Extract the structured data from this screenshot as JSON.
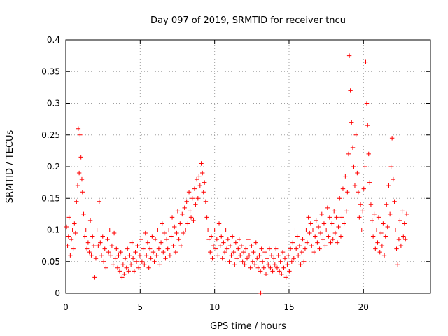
{
  "chart_data": {
    "type": "scatter",
    "title": "Day 097 of 2019, SRMTID for receiver tncu",
    "xlabel": "GPS time / hours",
    "ylabel": "SRMTID / TECUs",
    "xlim": [
      0,
      24.5
    ],
    "ylim": [
      0,
      0.4
    ],
    "x_ticks": [
      0,
      5,
      10,
      15,
      20
    ],
    "y_ticks": [
      0,
      0.05,
      0.1,
      0.15,
      0.2,
      0.25,
      0.3,
      0.35,
      0.4
    ],
    "x_tick_labels": [
      "0",
      "5",
      "10",
      "15",
      "20"
    ],
    "y_tick_labels": [
      "0",
      "0.05",
      "0.1",
      "0.15",
      "0.2",
      "0.25",
      "0.3",
      "0.35",
      "0.4"
    ],
    "grid": true,
    "marker": "plus",
    "series": [
      {
        "name": "",
        "color": "#ff0000",
        "points": [
          [
            0.05,
            0.105
          ],
          [
            0.12,
            0.075
          ],
          [
            0.18,
            0.09
          ],
          [
            0.22,
            0.12
          ],
          [
            0.3,
            0.06
          ],
          [
            0.38,
            0.085
          ],
          [
            0.45,
            0.1
          ],
          [
            0.5,
            0.07
          ],
          [
            0.58,
            0.11
          ],
          [
            0.65,
            0.095
          ],
          [
            0.72,
            0.145
          ],
          [
            0.8,
            0.17
          ],
          [
            0.84,
            0.26
          ],
          [
            0.9,
            0.19
          ],
          [
            0.96,
            0.25
          ],
          [
            1.02,
            0.215
          ],
          [
            1.08,
            0.18
          ],
          [
            1.12,
            0.16
          ],
          [
            1.2,
            0.125
          ],
          [
            1.28,
            0.09
          ],
          [
            1.35,
            0.1
          ],
          [
            1.42,
            0.07
          ],
          [
            1.5,
            0.08
          ],
          [
            1.58,
            0.065
          ],
          [
            1.65,
            0.115
          ],
          [
            1.72,
            0.06
          ],
          [
            1.8,
            0.09
          ],
          [
            1.88,
            0.075
          ],
          [
            1.95,
            0.025
          ],
          [
            2.02,
            0.055
          ],
          [
            2.1,
            0.1
          ],
          [
            2.18,
            0.075
          ],
          [
            2.25,
            0.145
          ],
          [
            2.32,
            0.08
          ],
          [
            2.4,
            0.06
          ],
          [
            2.48,
            0.09
          ],
          [
            2.55,
            0.05
          ],
          [
            2.62,
            0.07
          ],
          [
            2.7,
            0.04
          ],
          [
            2.8,
            0.085
          ],
          [
            2.88,
            0.065
          ],
          [
            2.95,
            0.1
          ],
          [
            3.02,
            0.06
          ],
          [
            3.1,
            0.075
          ],
          [
            3.18,
            0.045
          ],
          [
            3.25,
            0.095
          ],
          [
            3.32,
            0.055
          ],
          [
            3.4,
            0.07
          ],
          [
            3.48,
            0.04
          ],
          [
            3.55,
            0.06
          ],
          [
            3.62,
            0.035
          ],
          [
            3.7,
            0.065
          ],
          [
            3.78,
            0.025
          ],
          [
            3.85,
            0.045
          ],
          [
            3.92,
            0.03
          ],
          [
            4.0,
            0.055
          ],
          [
            4.08,
            0.04
          ],
          [
            4.15,
            0.07
          ],
          [
            4.22,
            0.035
          ],
          [
            4.3,
            0.06
          ],
          [
            4.38,
            0.045
          ],
          [
            4.45,
            0.08
          ],
          [
            4.52,
            0.055
          ],
          [
            4.6,
            0.035
          ],
          [
            4.68,
            0.065
          ],
          [
            4.75,
            0.05
          ],
          [
            4.82,
            0.075
          ],
          [
            4.9,
            0.04
          ],
          [
            4.98,
            0.06
          ],
          [
            5.05,
            0.085
          ],
          [
            5.12,
            0.05
          ],
          [
            5.2,
            0.07
          ],
          [
            5.28,
            0.045
          ],
          [
            5.35,
            0.095
          ],
          [
            5.42,
            0.06
          ],
          [
            5.5,
            0.08
          ],
          [
            5.58,
            0.04
          ],
          [
            5.65,
            0.07
          ],
          [
            5.72,
            0.055
          ],
          [
            5.8,
            0.09
          ],
          [
            5.88,
            0.065
          ],
          [
            5.95,
            0.05
          ],
          [
            6.02,
            0.085
          ],
          [
            6.1,
            0.06
          ],
          [
            6.18,
            0.1
          ],
          [
            6.25,
            0.07
          ],
          [
            6.32,
            0.045
          ],
          [
            6.4,
            0.08
          ],
          [
            6.48,
            0.11
          ],
          [
            6.55,
            0.065
          ],
          [
            6.62,
            0.095
          ],
          [
            6.7,
            0.055
          ],
          [
            6.78,
            0.085
          ],
          [
            6.85,
            0.07
          ],
          [
            6.92,
            0.1
          ],
          [
            7.0,
            0.06
          ],
          [
            7.08,
            0.09
          ],
          [
            7.15,
            0.12
          ],
          [
            7.22,
            0.075
          ],
          [
            7.3,
            0.105
          ],
          [
            7.38,
            0.065
          ],
          [
            7.45,
            0.095
          ],
          [
            7.52,
            0.13
          ],
          [
            7.6,
            0.085
          ],
          [
            7.68,
            0.11
          ],
          [
            7.75,
            0.075
          ],
          [
            7.82,
            0.125
          ],
          [
            7.9,
            0.095
          ],
          [
            7.98,
            0.135
          ],
          [
            8.05,
            0.1
          ],
          [
            8.12,
            0.145
          ],
          [
            8.2,
            0.11
          ],
          [
            8.28,
            0.16
          ],
          [
            8.35,
            0.13
          ],
          [
            8.42,
            0.12
          ],
          [
            8.5,
            0.15
          ],
          [
            8.58,
            0.115
          ],
          [
            8.65,
            0.165
          ],
          [
            8.72,
            0.14
          ],
          [
            8.8,
            0.18
          ],
          [
            8.88,
            0.15
          ],
          [
            8.95,
            0.185
          ],
          [
            9.02,
            0.17
          ],
          [
            9.1,
            0.205
          ],
          [
            9.18,
            0.19
          ],
          [
            9.25,
            0.16
          ],
          [
            9.32,
            0.175
          ],
          [
            9.4,
            0.145
          ],
          [
            9.48,
            0.12
          ],
          [
            9.55,
            0.1
          ],
          [
            9.62,
            0.085
          ],
          [
            9.7,
            0.065
          ],
          [
            9.78,
            0.09
          ],
          [
            9.85,
            0.055
          ],
          [
            9.92,
            0.075
          ],
          [
            10.0,
            0.1
          ],
          [
            10.08,
            0.07
          ],
          [
            10.15,
            0.085
          ],
          [
            10.22,
            0.06
          ],
          [
            10.3,
            0.11
          ],
          [
            10.38,
            0.075
          ],
          [
            10.45,
            0.09
          ],
          [
            10.52,
            0.055
          ],
          [
            10.6,
            0.08
          ],
          [
            10.68,
            0.065
          ],
          [
            10.75,
            0.1
          ],
          [
            10.82,
            0.07
          ],
          [
            10.9,
            0.085
          ],
          [
            10.98,
            0.05
          ],
          [
            11.05,
            0.075
          ],
          [
            11.12,
            0.06
          ],
          [
            11.2,
            0.09
          ],
          [
            11.28,
            0.065
          ],
          [
            11.35,
            0.045
          ],
          [
            11.42,
            0.08
          ],
          [
            11.5,
            0.055
          ],
          [
            11.58,
            0.07
          ],
          [
            11.65,
            0.085
          ],
          [
            11.72,
            0.06
          ],
          [
            11.8,
            0.075
          ],
          [
            11.88,
            0.05
          ],
          [
            11.95,
            0.065
          ],
          [
            12.02,
            0.045
          ],
          [
            12.1,
            0.07
          ],
          [
            12.18,
            0.055
          ],
          [
            12.25,
            0.085
          ],
          [
            12.32,
            0.06
          ],
          [
            12.4,
            0.04
          ],
          [
            12.48,
            0.075
          ],
          [
            12.55,
            0.05
          ],
          [
            12.62,
            0.065
          ],
          [
            12.7,
            0.045
          ],
          [
            12.78,
            0.08
          ],
          [
            12.85,
            0.055
          ],
          [
            12.92,
            0.04
          ],
          [
            13.0,
            0.06
          ],
          [
            13.08,
            0.035
          ],
          [
            13.15,
            0.07
          ],
          [
            13.22,
            0.05
          ],
          [
            13.3,
            0.04
          ],
          [
            13.38,
            0.065
          ],
          [
            13.45,
            0.03
          ],
          [
            13.52,
            0.055
          ],
          [
            13.6,
            0.045
          ],
          [
            13.68,
            0.07
          ],
          [
            13.75,
            0.04
          ],
          [
            13.82,
            0.06
          ],
          [
            13.9,
            0.035
          ],
          [
            13.98,
            0.055
          ],
          [
            14.05,
            0.045
          ],
          [
            14.12,
            0.07
          ],
          [
            14.2,
            0.04
          ],
          [
            14.28,
            0.06
          ],
          [
            14.35,
            0.035
          ],
          [
            14.42,
            0.05
          ],
          [
            14.5,
            0.03
          ],
          [
            14.58,
            0.065
          ],
          [
            14.65,
            0.04
          ],
          [
            14.72,
            0.055
          ],
          [
            14.8,
            0.025
          ],
          [
            14.88,
            0.045
          ],
          [
            14.95,
            0.06
          ],
          [
            15.02,
            0.035
          ],
          [
            15.1,
            0.07
          ],
          [
            15.18,
            0.05
          ],
          [
            15.25,
            0.08
          ],
          [
            15.32,
            0.055
          ],
          [
            15.4,
            0.1
          ],
          [
            15.48,
            0.07
          ],
          [
            15.55,
            0.09
          ],
          [
            15.62,
            0.06
          ],
          [
            15.7,
            0.075
          ],
          [
            15.78,
            0.045
          ],
          [
            15.85,
            0.065
          ],
          [
            15.92,
            0.085
          ],
          [
            16.0,
            0.05
          ],
          [
            16.08,
            0.07
          ],
          [
            16.15,
            0.1
          ],
          [
            16.22,
            0.08
          ],
          [
            16.3,
            0.12
          ],
          [
            16.38,
            0.095
          ],
          [
            16.45,
            0.11
          ],
          [
            16.52,
            0.075
          ],
          [
            16.6,
            0.1
          ],
          [
            16.68,
            0.065
          ],
          [
            16.75,
            0.09
          ],
          [
            16.82,
            0.115
          ],
          [
            16.9,
            0.08
          ],
          [
            16.98,
            0.105
          ],
          [
            17.05,
            0.07
          ],
          [
            17.12,
            0.095
          ],
          [
            17.2,
            0.125
          ],
          [
            17.28,
            0.085
          ],
          [
            17.35,
            0.11
          ],
          [
            17.42,
            0.075
          ],
          [
            17.5,
            0.1
          ],
          [
            17.58,
            0.135
          ],
          [
            17.65,
            0.09
          ],
          [
            17.72,
            0.12
          ],
          [
            17.8,
            0.08
          ],
          [
            17.88,
            0.11
          ],
          [
            17.95,
            0.085
          ],
          [
            18.02,
            0.13
          ],
          [
            18.1,
            0.095
          ],
          [
            18.18,
            0.12
          ],
          [
            18.25,
            0.08
          ],
          [
            18.32,
            0.105
          ],
          [
            18.4,
            0.15
          ],
          [
            18.48,
            0.09
          ],
          [
            18.55,
            0.12
          ],
          [
            18.62,
            0.165
          ],
          [
            18.7,
            0.11
          ],
          [
            18.78,
            0.185
          ],
          [
            18.85,
            0.13
          ],
          [
            18.92,
            0.16
          ],
          [
            19.0,
            0.22
          ],
          [
            19.05,
            0.375
          ],
          [
            19.12,
            0.32
          ],
          [
            19.2,
            0.27
          ],
          [
            19.28,
            0.23
          ],
          [
            19.35,
            0.2
          ],
          [
            19.42,
            0.17
          ],
          [
            19.5,
            0.25
          ],
          [
            19.58,
            0.19
          ],
          [
            19.65,
            0.16
          ],
          [
            19.72,
            0.12
          ],
          [
            19.8,
            0.14
          ],
          [
            19.88,
            0.1
          ],
          [
            19.95,
            0.13
          ],
          [
            20.02,
            0.165
          ],
          [
            20.1,
            0.2
          ],
          [
            20.15,
            0.365
          ],
          [
            20.22,
            0.3
          ],
          [
            20.28,
            0.265
          ],
          [
            20.35,
            0.22
          ],
          [
            20.42,
            0.175
          ],
          [
            20.5,
            0.14
          ],
          [
            20.58,
            0.115
          ],
          [
            20.65,
            0.09
          ],
          [
            20.72,
            0.125
          ],
          [
            20.8,
            0.07
          ],
          [
            20.88,
            0.1
          ],
          [
            20.95,
            0.08
          ],
          [
            21.02,
            0.12
          ],
          [
            21.1,
            0.065
          ],
          [
            21.18,
            0.095
          ],
          [
            21.25,
            0.075
          ],
          [
            21.32,
            0.11
          ],
          [
            21.4,
            0.06
          ],
          [
            21.48,
            0.09
          ],
          [
            21.55,
            0.14
          ],
          [
            21.62,
            0.105
          ],
          [
            21.7,
            0.17
          ],
          [
            21.78,
            0.125
          ],
          [
            21.85,
            0.2
          ],
          [
            21.92,
            0.245
          ],
          [
            22.0,
            0.18
          ],
          [
            22.08,
            0.145
          ],
          [
            22.15,
            0.1
          ],
          [
            22.22,
            0.07
          ],
          [
            22.3,
            0.045
          ],
          [
            22.38,
            0.085
          ],
          [
            22.45,
            0.115
          ],
          [
            22.52,
            0.075
          ],
          [
            22.6,
            0.13
          ],
          [
            22.68,
            0.09
          ],
          [
            22.75,
            0.11
          ],
          [
            22.82,
            0.085
          ],
          [
            22.9,
            0.125
          ],
          [
            13.1,
            0.0
          ]
        ]
      }
    ]
  }
}
